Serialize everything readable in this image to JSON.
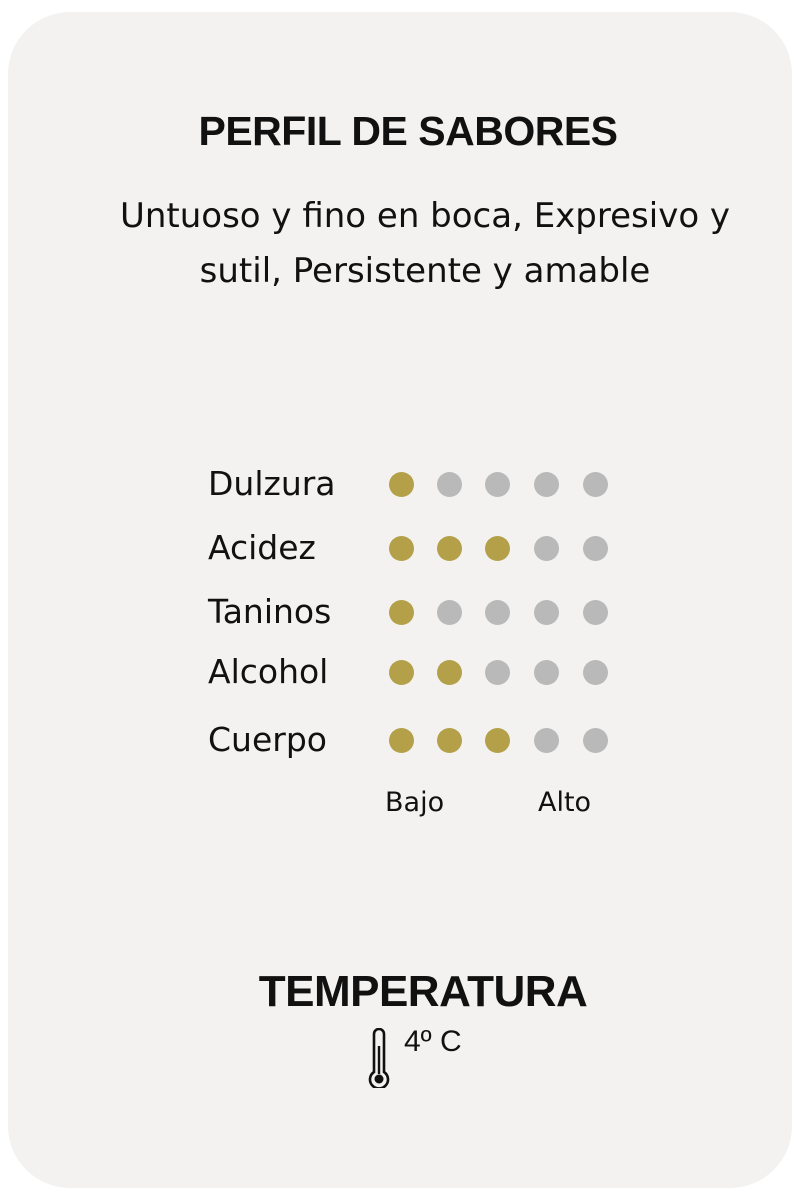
{
  "title": "PERFIL DE SABORES",
  "description": "Untuoso y fino en boca, Expresivo y sutil, Persistente y amable",
  "profile": {
    "max": 5,
    "items": [
      {
        "label": "Dulzura",
        "value": 1
      },
      {
        "label": "Acidez",
        "value": 3
      },
      {
        "label": "Taninos",
        "value": 1
      },
      {
        "label": "Alcohol",
        "value": 2
      },
      {
        "label": "Cuerpo",
        "value": 3
      }
    ],
    "low_label": "Bajo",
    "high_label": "Alto"
  },
  "colors": {
    "active": "#b3a048",
    "inactive": "#b9b9b9",
    "card": "#f3f2f0"
  },
  "temperature": {
    "title": "TEMPERATURA",
    "icon": "thermometer-icon",
    "value": "4º C"
  }
}
